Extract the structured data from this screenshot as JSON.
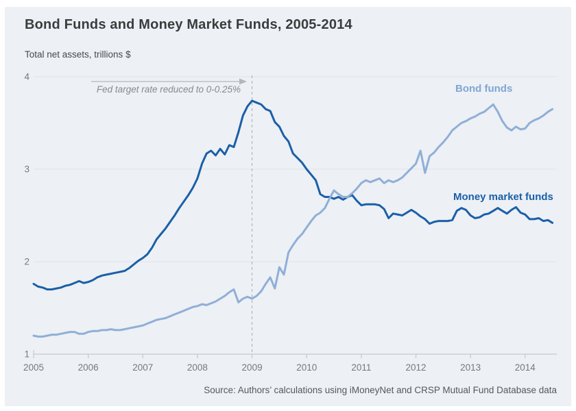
{
  "chart_data": {
    "type": "line",
    "title": "Bond Funds and Money Market Funds, 2005-2014",
    "ylabel": "Total net assets, trillions $",
    "source": "Source: Authors’ calculations using iMoneyNet and CRSP Mutual Fund Database data",
    "annotation": {
      "text": "Fed target rate reduced to 0-0.25%",
      "line_year": 2009
    },
    "x_ticks": [
      2005,
      2006,
      2007,
      2008,
      2009,
      2010,
      2011,
      2012,
      2013,
      2014
    ],
    "y_ticks": [
      1,
      2,
      3,
      4
    ],
    "xlim": [
      2005,
      2014.58
    ],
    "ylim": [
      1,
      4
    ],
    "x_start_year": 2005,
    "x_step": "monthly",
    "grid": "horizontal",
    "legend_position": "inline-labels",
    "colors": {
      "background": "#edf0f4",
      "gridline": "#e0e3e8",
      "axis": "#c5c8cd",
      "dashed_line": "#a8abb0"
    },
    "series": [
      {
        "name": "Bond funds",
        "color": "#8fafd7",
        "label_color": "#7fa6d3",
        "values": [
          1.2,
          1.19,
          1.19,
          1.2,
          1.21,
          1.21,
          1.22,
          1.23,
          1.24,
          1.24,
          1.22,
          1.22,
          1.24,
          1.25,
          1.25,
          1.26,
          1.26,
          1.27,
          1.26,
          1.26,
          1.27,
          1.28,
          1.29,
          1.3,
          1.31,
          1.33,
          1.35,
          1.37,
          1.38,
          1.39,
          1.41,
          1.43,
          1.45,
          1.47,
          1.49,
          1.51,
          1.52,
          1.54,
          1.53,
          1.55,
          1.57,
          1.6,
          1.63,
          1.67,
          1.7,
          1.56,
          1.6,
          1.62,
          1.6,
          1.63,
          1.68,
          1.76,
          1.83,
          1.71,
          1.94,
          1.86,
          2.1,
          2.18,
          2.25,
          2.3,
          2.37,
          2.44,
          2.5,
          2.53,
          2.58,
          2.68,
          2.77,
          2.73,
          2.7,
          2.7,
          2.74,
          2.79,
          2.85,
          2.88,
          2.86,
          2.88,
          2.9,
          2.85,
          2.88,
          2.86,
          2.88,
          2.91,
          2.96,
          3.01,
          3.06,
          3.2,
          2.96,
          3.14,
          3.18,
          3.24,
          3.29,
          3.35,
          3.42,
          3.46,
          3.5,
          3.52,
          3.55,
          3.57,
          3.6,
          3.62,
          3.66,
          3.7,
          3.62,
          3.52,
          3.45,
          3.42,
          3.46,
          3.43,
          3.44,
          3.5,
          3.53,
          3.55,
          3.58,
          3.62,
          3.65
        ]
      },
      {
        "name": "Money market funds",
        "color": "#1a5fa8",
        "label_color": "#1a5fa8",
        "values": [
          1.76,
          1.73,
          1.72,
          1.7,
          1.7,
          1.71,
          1.72,
          1.74,
          1.75,
          1.77,
          1.79,
          1.77,
          1.78,
          1.8,
          1.83,
          1.85,
          1.86,
          1.87,
          1.88,
          1.89,
          1.9,
          1.93,
          1.97,
          2.01,
          2.04,
          2.08,
          2.15,
          2.24,
          2.3,
          2.36,
          2.43,
          2.5,
          2.58,
          2.65,
          2.72,
          2.8,
          2.9,
          3.06,
          3.17,
          3.2,
          3.15,
          3.22,
          3.16,
          3.26,
          3.24,
          3.4,
          3.58,
          3.68,
          3.74,
          3.72,
          3.7,
          3.65,
          3.63,
          3.51,
          3.46,
          3.36,
          3.3,
          3.17,
          3.12,
          3.07,
          3.0,
          2.94,
          2.88,
          2.73,
          2.7,
          2.7,
          2.68,
          2.7,
          2.67,
          2.7,
          2.72,
          2.66,
          2.61,
          2.62,
          2.62,
          2.62,
          2.61,
          2.57,
          2.47,
          2.52,
          2.51,
          2.5,
          2.53,
          2.56,
          2.53,
          2.49,
          2.46,
          2.41,
          2.43,
          2.44,
          2.44,
          2.44,
          2.45,
          2.55,
          2.58,
          2.56,
          2.5,
          2.47,
          2.48,
          2.51,
          2.52,
          2.55,
          2.58,
          2.55,
          2.52,
          2.56,
          2.59,
          2.53,
          2.51,
          2.46,
          2.46,
          2.47,
          2.44,
          2.45,
          2.42
        ]
      }
    ]
  }
}
